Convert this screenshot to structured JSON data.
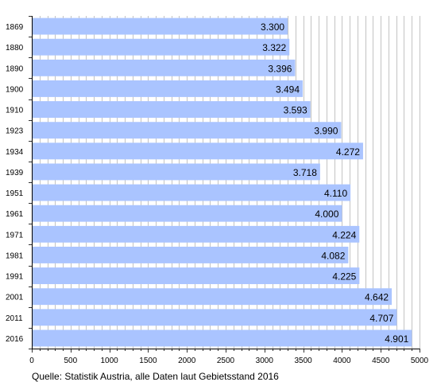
{
  "chart_data": {
    "type": "bar",
    "orientation": "horizontal",
    "categories": [
      "1869",
      "1880",
      "1890",
      "1900",
      "1910",
      "1923",
      "1934",
      "1939",
      "1951",
      "1961",
      "1971",
      "1981",
      "1991",
      "2001",
      "2011",
      "2016"
    ],
    "values": [
      3300,
      3322,
      3396,
      3494,
      3593,
      3990,
      4272,
      3718,
      4110,
      4000,
      4224,
      4082,
      4225,
      4642,
      4707,
      4901
    ],
    "value_labels": [
      "3.300",
      "3.322",
      "3.396",
      "3.494",
      "3.593",
      "3.990",
      "4.272",
      "3.718",
      "4.110",
      "4.000",
      "4.224",
      "4.082",
      "4.225",
      "4.642",
      "4.707",
      "4.901"
    ],
    "x_ticks": [
      0,
      500,
      1000,
      1500,
      2000,
      2500,
      3000,
      3500,
      4000,
      4500,
      5000
    ],
    "xlim": [
      0,
      5000
    ],
    "grid": true,
    "legend": "none",
    "title": "",
    "xlabel": "",
    "ylabel": "",
    "bar_color": "#aac4ff",
    "grid_color": "#b4b4b4"
  },
  "source_note": "Quelle: Statistik Austria, alle Daten laut Gebietsstand 2016"
}
